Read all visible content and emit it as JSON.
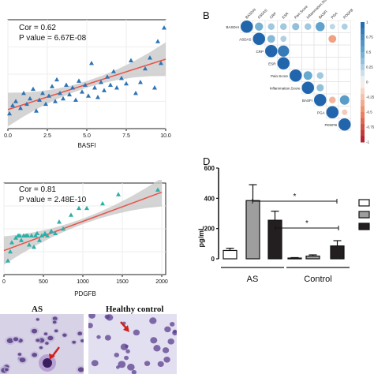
{
  "panelA1": {
    "cor_text": "Cor = 0.62",
    "p_text": "P value = 6.67E-08",
    "xlabel": "BASFI",
    "x_ticks": [
      "0.0",
      "2.5",
      "5.0",
      "7.5",
      "10.0"
    ],
    "colors": {
      "point": "#2e74b5",
      "line": "#e8534a",
      "band": "#c9c9c9"
    }
  },
  "panelA2": {
    "cor_text": "Cor = 0.81",
    "p_text": "P value = 2.48E-10",
    "xlabel": "PDGFB",
    "x_ticks": [
      "0",
      "500",
      "1000",
      "1500",
      "2000"
    ],
    "colors": {
      "point": "#2ab0a8",
      "line": "#e8534a",
      "band": "#c9c9c9"
    }
  },
  "panelB": {
    "letter": "B",
    "labels": [
      "BASDAI",
      "ASDAS",
      "CRP",
      "ESR",
      "Pain.Score",
      "Inflammation.Score",
      "BASFI",
      "PGA",
      "PDGFB"
    ],
    "colorbar_ticks": [
      "1",
      "0.75",
      "0.5",
      "0.25",
      "0",
      "-0.25",
      "-0.5",
      "-0.75",
      "-1"
    ]
  },
  "panelD": {
    "letter": "D",
    "ylabel": "pg/mL",
    "y_ticks": [
      "0",
      "200",
      "400",
      "600"
    ],
    "groups": [
      "AS",
      "Control"
    ],
    "significance": [
      "*",
      "*"
    ]
  },
  "panelE": {
    "label_left": "AS",
    "label_right": "Healthy control"
  },
  "chart_data": [
    {
      "type": "scatter",
      "title": "",
      "xlabel": "BASFI",
      "ylabel": "",
      "xlim": [
        0,
        10
      ],
      "ylim": [
        0,
        4
      ],
      "annotations": [
        "Cor = 0.62",
        "P value = 6.67E-08"
      ],
      "points": [
        [
          0.1,
          0.55
        ],
        [
          0.3,
          0.85
        ],
        [
          0.5,
          1.0
        ],
        [
          0.8,
          0.75
        ],
        [
          1.0,
          1.3
        ],
        [
          1.2,
          0.9
        ],
        [
          1.4,
          1.1
        ],
        [
          1.6,
          1.45
        ],
        [
          1.8,
          0.65
        ],
        [
          2.0,
          1.05
        ],
        [
          2.2,
          1.3
        ],
        [
          2.4,
          0.9
        ],
        [
          2.6,
          1.2
        ],
        [
          2.8,
          1.55
        ],
        [
          3.0,
          1.0
        ],
        [
          3.1,
          1.8
        ],
        [
          3.3,
          1.3
        ],
        [
          3.5,
          1.1
        ],
        [
          3.7,
          1.6
        ],
        [
          3.9,
          1.25
        ],
        [
          4.1,
          1.5
        ],
        [
          4.3,
          1.05
        ],
        [
          4.5,
          1.75
        ],
        [
          4.7,
          1.35
        ],
        [
          4.9,
          1.6
        ],
        [
          5.1,
          1.2
        ],
        [
          5.3,
          2.4
        ],
        [
          5.5,
          1.5
        ],
        [
          5.7,
          1.15
        ],
        [
          5.9,
          1.7
        ],
        [
          6.1,
          1.4
        ],
        [
          6.3,
          1.9
        ],
        [
          6.5,
          1.6
        ],
        [
          6.7,
          2.1
        ],
        [
          6.9,
          1.5
        ],
        [
          7.2,
          1.85
        ],
        [
          7.5,
          1.65
        ],
        [
          7.8,
          2.5
        ],
        [
          8.1,
          1.3
        ],
        [
          8.4,
          1.7
        ],
        [
          8.7,
          2.2
        ],
        [
          9.0,
          2.6
        ],
        [
          9.3,
          1.5
        ],
        [
          9.5,
          3.2
        ],
        [
          9.7,
          2.4
        ],
        [
          9.9,
          3.7
        ]
      ],
      "fit": {
        "x": [
          0,
          10
        ],
        "y": [
          0.7,
          2.55
        ]
      }
    },
    {
      "type": "scatter",
      "title": "",
      "xlabel": "PDGFB",
      "ylabel": "",
      "xlim": [
        0,
        2050
      ],
      "ylim": [
        0,
        4
      ],
      "annotations": [
        "Cor = 0.81",
        "P value = 2.48E-10"
      ],
      "points": [
        [
          50,
          0.6
        ],
        [
          80,
          1.0
        ],
        [
          100,
          1.4
        ],
        [
          150,
          1.6
        ],
        [
          180,
          1.7
        ],
        [
          200,
          1.7
        ],
        [
          220,
          1.5
        ],
        [
          250,
          1.7
        ],
        [
          280,
          1.7
        ],
        [
          300,
          1.7
        ],
        [
          320,
          1.3
        ],
        [
          350,
          1.7
        ],
        [
          380,
          1.2
        ],
        [
          400,
          1.7
        ],
        [
          420,
          1.8
        ],
        [
          450,
          1.5
        ],
        [
          480,
          1.7
        ],
        [
          520,
          1.8
        ],
        [
          550,
          1.7
        ],
        [
          600,
          1.9
        ],
        [
          650,
          1.8
        ],
        [
          700,
          2.3
        ],
        [
          750,
          2.0
        ],
        [
          850,
          2.6
        ],
        [
          950,
          2.9
        ],
        [
          1050,
          2.9
        ],
        [
          1250,
          3.1
        ],
        [
          1450,
          3.5
        ],
        [
          1950,
          3.7
        ]
      ],
      "fit": {
        "x": [
          0,
          2000
        ],
        "y": [
          1.05,
          3.6
        ]
      }
    },
    {
      "type": "heatmap",
      "title": "",
      "labels": [
        "BASDAI",
        "ASDAS",
        "CRP",
        "ESR",
        "Pain.Score",
        "Inflammation.Score",
        "BASFI",
        "PGA",
        "PDGFB"
      ],
      "cells": [
        [
          0,
          0,
          1.0
        ],
        [
          0,
          1,
          0.45
        ],
        [
          0,
          2,
          0.3
        ],
        [
          0,
          3,
          0.3
        ],
        [
          0,
          4,
          0.35
        ],
        [
          0,
          5,
          0.3
        ],
        [
          0,
          6,
          0.55
        ],
        [
          0,
          7,
          0.2
        ],
        [
          0,
          8,
          0.25
        ],
        [
          1,
          1,
          1.0
        ],
        [
          1,
          2,
          0.4
        ],
        [
          1,
          3,
          0.25
        ],
        [
          1,
          7,
          -0.4
        ],
        [
          2,
          2,
          1.0
        ],
        [
          2,
          3,
          0.85
        ],
        [
          3,
          3,
          1.0
        ],
        [
          4,
          4,
          1.0
        ],
        [
          4,
          5,
          0.5
        ],
        [
          4,
          6,
          0.3
        ],
        [
          5,
          5,
          1.0
        ],
        [
          5,
          6,
          0.35
        ],
        [
          6,
          6,
          1.0
        ],
        [
          6,
          7,
          -0.3
        ],
        [
          6,
          8,
          0.6
        ],
        [
          7,
          7,
          1.0
        ],
        [
          7,
          8,
          -0.2
        ],
        [
          8,
          8,
          1.0
        ]
      ],
      "colorbar": {
        "ticks": [
          "1",
          "0.75",
          "0.5",
          "0.25",
          "0",
          "-0.25",
          "-0.5",
          "-0.75",
          "-1"
        ]
      }
    },
    {
      "type": "bar",
      "title": "",
      "xlabel": "",
      "ylabel": "pg/mL",
      "ylim": [
        0,
        600
      ],
      "categories": [
        "AS",
        "Control"
      ],
      "series": [
        {
          "values": [
            55,
            5
          ],
          "errors": [
            15,
            3
          ],
          "color": "#ffffff"
        },
        {
          "values": [
            385,
            18
          ],
          "errors": [
            105,
            8
          ],
          "color": "#9e9e9e"
        },
        {
          "values": [
            255,
            85
          ],
          "errors": [
            60,
            35
          ],
          "color": "#231f20"
        }
      ]
    }
  ]
}
